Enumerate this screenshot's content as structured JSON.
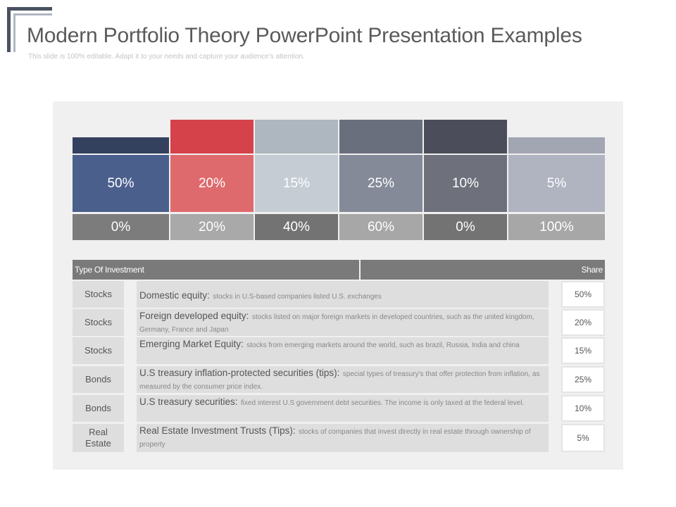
{
  "header": {
    "title": "Modern Portfolio Theory PowerPoint Presentation Examples",
    "subtitle": "This slide is 100% editable. Adapt it to your needs and capture your audience's attention."
  },
  "chart": {
    "columns": [
      {
        "top_value": "50%",
        "bottom_value": "0%"
      },
      {
        "top_value": "20%",
        "bottom_value": "20%"
      },
      {
        "top_value": "15%",
        "bottom_value": "40%"
      },
      {
        "top_value": "25%",
        "bottom_value": "60%"
      },
      {
        "top_value": "10%",
        "bottom_value": "0%"
      },
      {
        "top_value": "5%",
        "bottom_value": "100%"
      }
    ],
    "colors": {
      "cap": [
        "#34415e",
        "#d54249",
        "#aeb6bf",
        "#6a6f7e",
        "#4b4e5a",
        "#a2a5b2"
      ],
      "mid": [
        "#4b5f8c",
        "#df6a6d",
        "#c5ccd3",
        "#858a99",
        "#6e707c",
        "#b0b3c0"
      ],
      "bottom": [
        "#7c7c7c",
        "#a9a9a9",
        "#737373",
        "#a7a7a7",
        "#737373",
        "#a7a7a7"
      ]
    }
  },
  "table": {
    "header_type": "Type Of Investment",
    "header_share": "Share",
    "rows": [
      {
        "category": "Stocks",
        "heading": "Domestic equity:",
        "text": "stocks in U.S-based companies listed U.S. exchanges",
        "share": "50%"
      },
      {
        "category": "Stocks",
        "heading": "Foreign developed equity:",
        "text": "stocks listed on major foreign markets in developed countries, such as the united kingdom, Germany, France and Japan",
        "share": "20%"
      },
      {
        "category": "Stocks",
        "heading": "Emerging Market Equity:",
        "text": "stocks from emerging markets around the world, such as brazil, Russia, India and china",
        "share": "15%"
      },
      {
        "category": "Bonds",
        "heading": "U.S treasury inflation-protected securities (tips):",
        "text": "special types of treasury's that offer protection from inflation, as measured by the consumer price index.",
        "share": "25%"
      },
      {
        "category": "Bonds",
        "heading": "U.S treasury securities:",
        "text": "fixed interest U.S government debt securities. The income is only taxed at the federal level.",
        "share": "10%"
      },
      {
        "category": "Real Estate",
        "heading": "Real Estate Investment Trusts (Tips):",
        "text": "stocks of companies that invest directly in real estate through ownership of property",
        "share": "5%"
      }
    ]
  }
}
